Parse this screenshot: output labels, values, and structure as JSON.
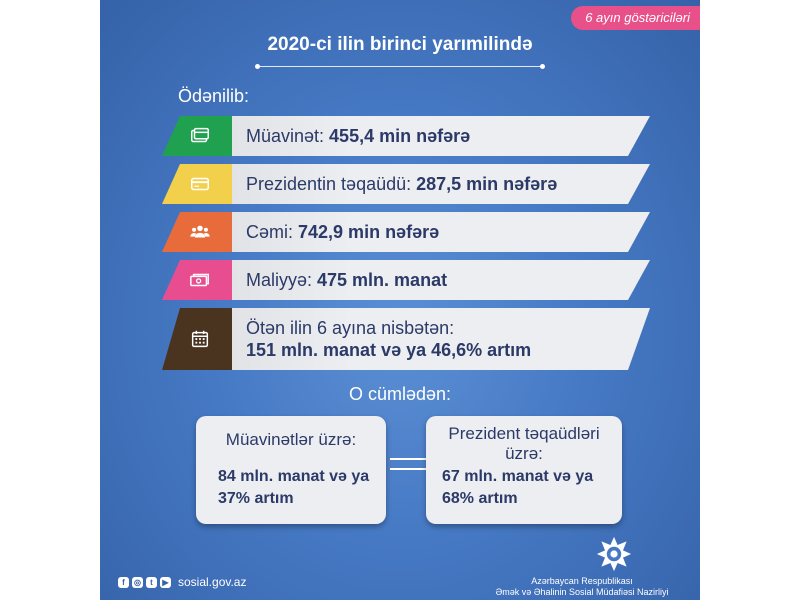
{
  "tag": "6 ayın göstəriciləri",
  "title": "2020-ci ilin birinci yarımilində",
  "paid_heading": "Ödənilib:",
  "rows": [
    {
      "label": "Müavinət:",
      "value": "455,4 min nəfərə",
      "color": "#1fa14f",
      "icon": "wallet-card-icon"
    },
    {
      "label": "Prezidentin təqaüdü:",
      "value": "287,5 min nəfərə",
      "color": "#f2d04c",
      "icon": "credit-card-icon"
    },
    {
      "label": "Cəmi:",
      "value": "742,9 min nəfərə",
      "color": "#e86b3c",
      "icon": "people-group-icon"
    },
    {
      "label": "Maliyyə:",
      "value": "475 mln. manat",
      "color": "#e84e8f",
      "icon": "money-stack-icon"
    },
    {
      "label": "Ötən ilin 6 ayına nisbətən:",
      "value": "151 mln. manat və ya 46,6% artım",
      "color": "#4a3420",
      "icon": "calendar-icon"
    }
  ],
  "subheading": "O cümlədən:",
  "boxes": [
    {
      "heading": "Müavinətlər üzrə:",
      "line1": "84 mln. manat və ya",
      "line2": "37% artım"
    },
    {
      "heading_line1": "Prezident təqaüdləri",
      "heading_line2": "üzrə:",
      "line1": "67 mln. manat və ya",
      "line2": "68% artım"
    }
  ],
  "footer": {
    "social_icons": [
      "facebook-icon",
      "instagram-icon",
      "twitter-icon",
      "youtube-icon"
    ],
    "website": "sosial.gov.az",
    "org_line1": "Azərbaycan Respublikası",
    "org_line2": "Əmək və Əhalinin Sosial Müdafiəsi Nazirliyi"
  }
}
